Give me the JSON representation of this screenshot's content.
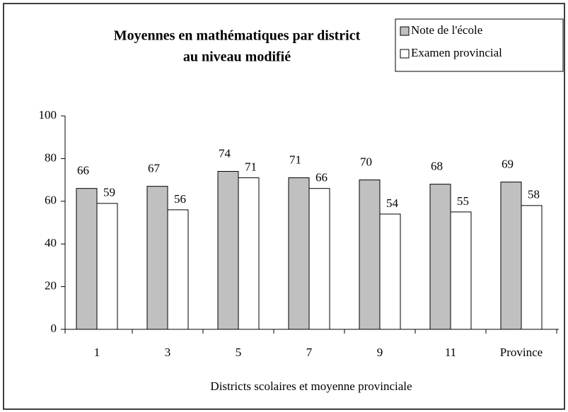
{
  "chart_data": {
    "type": "bar",
    "title": [
      "Moyennes en mathématiques par district",
      "au niveau modifié"
    ],
    "x_label": "Districts scolaires et moyenne provinciale",
    "categories": [
      "1",
      "3",
      "5",
      "7",
      "9",
      "11",
      "Province"
    ],
    "series": [
      {
        "name": "Note de l'école",
        "color": "#c0c0c0",
        "values": [
          66,
          67,
          74,
          71,
          70,
          68,
          69
        ]
      },
      {
        "name": "Examen provincial",
        "color": "#ffffff",
        "values": [
          59,
          56,
          71,
          66,
          54,
          55,
          58
        ]
      }
    ],
    "ylim": [
      0,
      100
    ],
    "yticks": [
      0,
      20,
      40,
      60,
      80,
      100
    ],
    "legend": "top-right"
  }
}
